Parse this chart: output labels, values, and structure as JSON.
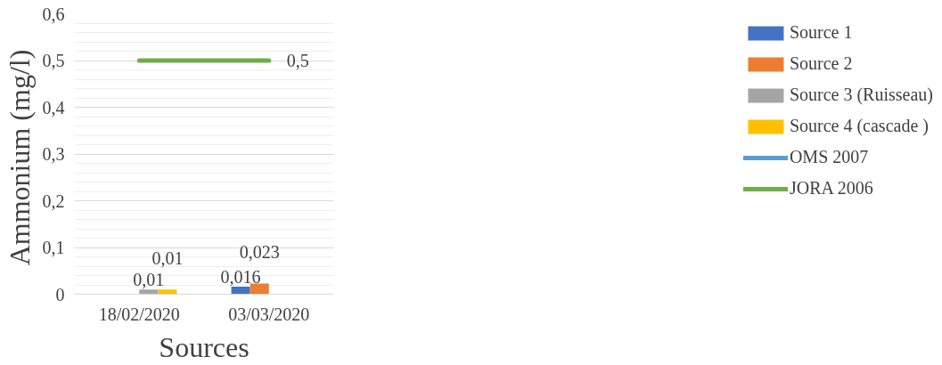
{
  "chart_data": {
    "type": "bar",
    "xlabel": "Sources",
    "ylabel": "Ammonium  (mg/l)",
    "categories": [
      "18/02/2020",
      "03/03/2020"
    ],
    "series": [
      {
        "name": "Source 1",
        "color": "#4472c4",
        "values": [
          null,
          0.016
        ],
        "value_labels": [
          null,
          "0,016"
        ]
      },
      {
        "name": "Source 2",
        "color": "#ed7d31",
        "values": [
          null,
          0.023
        ],
        "value_labels": [
          null,
          "0,023"
        ]
      },
      {
        "name": "Source 3 (Ruisseau)",
        "color": "#a5a5a5",
        "values": [
          0.01,
          null
        ],
        "value_labels": [
          "0,01",
          null
        ]
      },
      {
        "name": "Source 4 (cascade )",
        "color": "#ffc000",
        "values": [
          0.01,
          null
        ],
        "value_labels": [
          "0,01",
          null
        ]
      },
      {
        "name": "OMS 2007",
        "type": "line",
        "color": "#5b9bd5",
        "values": [
          null,
          null
        ]
      },
      {
        "name": "JORA 2006",
        "type": "line",
        "color": "#70ad47",
        "values": [
          0.5,
          0.5
        ],
        "value_labels": [
          null,
          "0,5"
        ]
      }
    ],
    "ylim": [
      0,
      0.6
    ],
    "yticks": [
      {
        "value": 0,
        "label": "0"
      },
      {
        "value": 0.1,
        "label": "0,1"
      },
      {
        "value": 0.2,
        "label": "0,2"
      },
      {
        "value": 0.3,
        "label": "0,3"
      },
      {
        "value": 0.4,
        "label": "0,4"
      },
      {
        "value": 0.5,
        "label": "0,5"
      },
      {
        "value": 0.6,
        "label": "0,6"
      }
    ],
    "grid": "y",
    "legend": "right"
  }
}
